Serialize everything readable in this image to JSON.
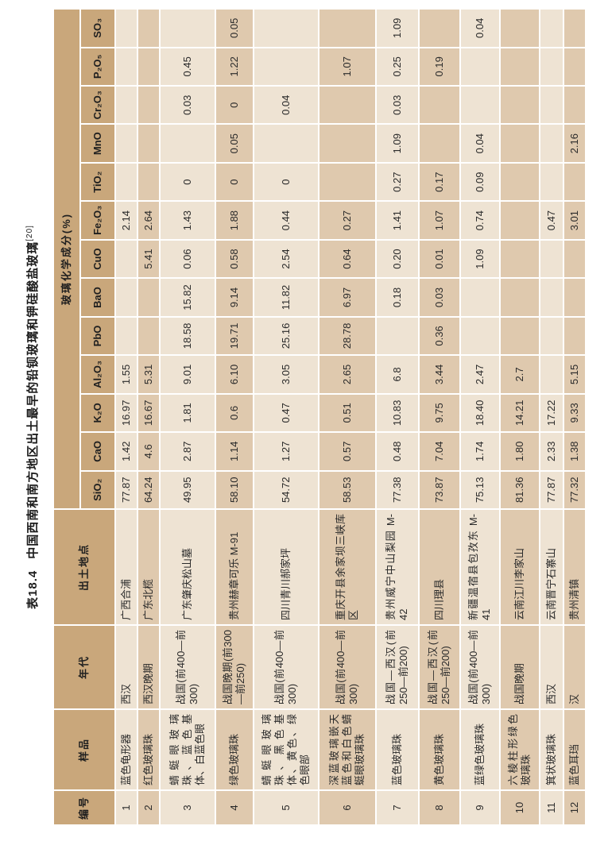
{
  "title": {
    "label": "表18.4",
    "text": "中国西南和南方地区出土最早的铅钡玻璃和钾硅酸盐玻璃",
    "ref": "[20]"
  },
  "colors": {
    "header_bg": "#c9a77b",
    "row_light": "#eee3d3",
    "row_dark": "#dfc9ae",
    "page_bg": "#ffffff"
  },
  "table": {
    "headers": {
      "id": "编号",
      "sample": "样品",
      "era": "年代",
      "site": "出土地点",
      "composition_group": "玻璃化学成分(%)",
      "components": [
        "SiO₂",
        "CaO",
        "K₂O",
        "Al₂O₃",
        "PbO",
        "BaO",
        "CuO",
        "Fe₂O₃",
        "TiO₂",
        "MnO",
        "Cr₂O₃",
        "P₂O₅",
        "SO₃"
      ]
    },
    "rows": [
      {
        "id": "1",
        "sample": "蓝色龟形器",
        "era": "西汉",
        "site": "广西合浦",
        "values": [
          "77.87",
          "1.42",
          "16.97",
          "1.55",
          "",
          "",
          "",
          "2.14",
          "",
          "",
          "",
          "",
          ""
        ]
      },
      {
        "id": "2",
        "sample": "红色玻璃珠",
        "era": "西汉晚期",
        "site": "广东北榄",
        "values": [
          "64.24",
          "4.6",
          "16.67",
          "5.31",
          "",
          "",
          "5.41",
          "2.64",
          "",
          "",
          "",
          "",
          ""
        ]
      },
      {
        "id": "3",
        "sample": "蜻蜓眼玻璃珠、蓝色基体、白蓝色眼",
        "era": "战国(前400—前300)",
        "site": "广东肇庆松山墓",
        "values": [
          "49.95",
          "2.87",
          "1.81",
          "9.01",
          "18.58",
          "15.82",
          "0.06",
          "1.43",
          "0",
          "",
          "0.03",
          "0.45",
          ""
        ]
      },
      {
        "id": "4",
        "sample": "绿色玻璃珠",
        "era": "战国晚期(前300—前250)",
        "site": "贵州赫章可乐 M-91",
        "values": [
          "58.10",
          "1.14",
          "0.6",
          "6.10",
          "19.71",
          "9.14",
          "0.58",
          "1.88",
          "0",
          "0.05",
          "0",
          "1.22",
          "0.05"
        ]
      },
      {
        "id": "5",
        "sample": "蜻蜓眼玻璃珠、黑色基体、黄色、绿色眼部",
        "era": "战国(前400—前300)",
        "site": "四川青川郝家坪",
        "values": [
          "54.72",
          "1.27",
          "0.47",
          "3.05",
          "25.16",
          "11.82",
          "2.54",
          "0.44",
          "0",
          "",
          "0.04",
          "",
          ""
        ]
      },
      {
        "id": "6",
        "sample": "深蓝玻璃嵌天蓝色和白色蜻蜓眼玻璃珠",
        "era": "战国(前400—前300)",
        "site": "重庆开县余家坝三峡库区",
        "values": [
          "58.53",
          "0.57",
          "0.51",
          "2.65",
          "28.78",
          "6.97",
          "0.64",
          "0.27",
          "",
          "",
          "",
          "1.07",
          ""
        ]
      },
      {
        "id": "7",
        "sample": "蓝色玻璃珠",
        "era": "战国—西汉(前250—前200)",
        "site": "贵州威宁中山梨园 M-42",
        "values": [
          "77.38",
          "0.48",
          "10.83",
          "6.8",
          "",
          "0.18",
          "0.20",
          "1.41",
          "0.27",
          "1.09",
          "0.03",
          "0.25",
          "1.09"
        ]
      },
      {
        "id": "8",
        "sample": "黄色玻璃珠",
        "era": "战国—西汉(前250—前200)",
        "site": "四川理县",
        "values": [
          "73.87",
          "7.04",
          "9.75",
          "3.44",
          "0.36",
          "0.03",
          "0.01",
          "1.07",
          "0.17",
          "",
          "",
          "0.19",
          ""
        ]
      },
      {
        "id": "9",
        "sample": "蓝绿色玻璃珠",
        "era": "战国(前400—前300)",
        "site": "新疆温宿县包孜东 M-41",
        "values": [
          "75.13",
          "1.74",
          "18.40",
          "2.47",
          "",
          "",
          "1.09",
          "0.74",
          "0.09",
          "0.04",
          "",
          "",
          "0.04"
        ]
      },
      {
        "id": "10",
        "sample": "六棱柱形绿色玻璃珠",
        "era": "战国晚期",
        "site": "云南江川李家山",
        "values": [
          "81.36",
          "1.80",
          "14.21",
          "2.7",
          "",
          "",
          "",
          "",
          "",
          "",
          "",
          "",
          ""
        ]
      },
      {
        "id": "11",
        "sample": "箕状玻璃珠",
        "era": "西汉",
        "site": "云南晋宁石寨山",
        "values": [
          "77.87",
          "2.33",
          "17.22",
          "",
          "",
          "",
          "",
          "0.47",
          "",
          "",
          "",
          "",
          ""
        ]
      },
      {
        "id": "12",
        "sample": "蓝色耳珰",
        "era": "汉",
        "site": "贵州清镇",
        "values": [
          "77.32",
          "1.38",
          "9.33",
          "5.15",
          "",
          "",
          "",
          "3.01",
          "",
          "2.16",
          "",
          "",
          ""
        ]
      }
    ]
  }
}
